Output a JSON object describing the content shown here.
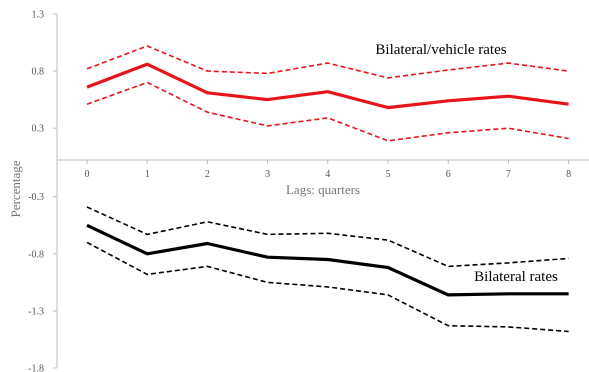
{
  "chart_data": {
    "type": "line",
    "x": [
      0,
      1,
      2,
      3,
      4,
      5,
      6,
      7,
      8
    ],
    "xlabel": "Lags: quarters",
    "ylabel": "Percentage",
    "ylim": [
      -1.8,
      1.3
    ],
    "yticks": [
      1.3,
      0.8,
      0.3,
      -0.3,
      -0.8,
      -1.3,
      -1.8
    ],
    "ytick_labels": [
      "1.3",
      "0.8",
      "0.3",
      "-0.3",
      "-0.8",
      "-1.3",
      "-1.8"
    ],
    "xtick_labels": [
      "0",
      "1",
      "2",
      "3",
      "4",
      "5",
      "6",
      "7",
      "8"
    ],
    "grid": false,
    "series": [
      {
        "name": "Bilateral/vehicle rates",
        "color": "#e8141b",
        "style": "solid",
        "values": [
          0.66,
          0.86,
          0.61,
          0.55,
          0.62,
          0.48,
          0.54,
          0.58,
          0.51
        ]
      },
      {
        "color": "#e8141b",
        "style": "dashed",
        "values": [
          0.82,
          1.02,
          0.8,
          0.78,
          0.87,
          0.74,
          0.81,
          0.87,
          0.8
        ]
      },
      {
        "color": "#e8141b",
        "style": "dashed",
        "values": [
          0.51,
          0.7,
          0.44,
          0.32,
          0.39,
          0.19,
          0.26,
          0.3,
          0.21
        ]
      },
      {
        "name": "Bilateral rates",
        "color": "#000000",
        "style": "solid",
        "values": [
          -0.55,
          -0.8,
          -0.71,
          -0.83,
          -0.85,
          -0.92,
          -1.16,
          -1.15,
          -1.15
        ]
      },
      {
        "color": "#000000",
        "style": "dashed",
        "values": [
          -0.39,
          -0.63,
          -0.52,
          -0.63,
          -0.62,
          -0.68,
          -0.91,
          -0.88,
          -0.84
        ]
      },
      {
        "color": "#000000",
        "style": "dashed",
        "values": [
          -0.7,
          -0.98,
          -0.91,
          -1.05,
          -1.09,
          -1.16,
          -1.43,
          -1.44,
          -1.48
        ]
      }
    ]
  }
}
